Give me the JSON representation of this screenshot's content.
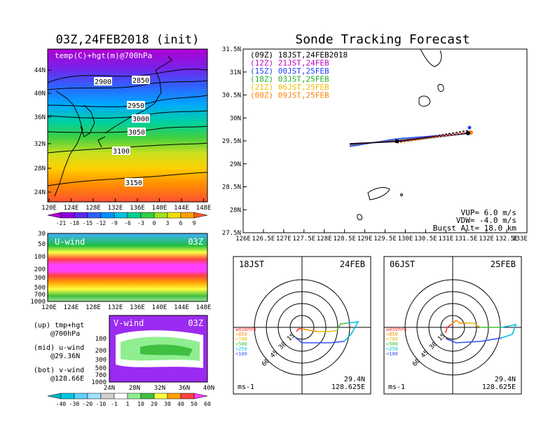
{
  "left_title": "03Z,24FEB2018 (init)",
  "main_title": "Sonde Tracking Forecast",
  "map_panel": {
    "label": "temp(C)+hgt(m)@700hPa",
    "lat_ticks": [
      "44N",
      "40N",
      "36N",
      "32N",
      "28N",
      "24N"
    ],
    "lon_ticks": [
      "120E",
      "124E",
      "128E",
      "132E",
      "136E",
      "140E",
      "144E",
      "148E"
    ],
    "contours": [
      "2850",
      "2900",
      "2950",
      "3000",
      "3050",
      "3100",
      "3150"
    ]
  },
  "temp_colorbar": {
    "labels": [
      "-21",
      "-18",
      "-15",
      "-12",
      "-9",
      "-6",
      "-3",
      "0",
      "3",
      "6",
      "9"
    ],
    "colors": [
      "#b000d0",
      "#8a00e0",
      "#5a28f0",
      "#2a60ff",
      "#0090ff",
      "#00c0e0",
      "#00d090",
      "#30d040",
      "#a0e020",
      "#f0e000",
      "#ffa000",
      "#ff5a20"
    ]
  },
  "uwind_panel": {
    "label": "U-wind",
    "time": "03Z",
    "p_ticks": [
      "30",
      "50",
      "100",
      "200",
      "300",
      "500",
      "700",
      "1000"
    ],
    "lon_ticks": [
      "120E",
      "124E",
      "128E",
      "132E",
      "136E",
      "140E",
      "144E",
      "148E"
    ]
  },
  "vwind_panel": {
    "label": "V-wind",
    "time": "03Z",
    "p_ticks": [
      "100",
      "200",
      "300",
      "500",
      "700",
      "1000"
    ],
    "lat_ticks": [
      "24N",
      "28N",
      "32N",
      "36N",
      "40N"
    ]
  },
  "legend_notes": {
    "up": "(up) tmp+hgt",
    "up2": "@700hPa",
    "mid": "(mid) u-wind",
    "mid2": "@29.36N",
    "bot": "(bot) v-wind",
    "bot2": "@128.66E"
  },
  "wind_colorbar": {
    "labels": [
      "-40",
      "-30",
      "-20",
      "-10",
      "-1",
      "1",
      "10",
      "20",
      "30",
      "40",
      "50",
      "60"
    ],
    "colors": [
      "#00b4c8",
      "#00c8e0",
      "#60d0ff",
      "#a0e0ff",
      "#d0d0d0",
      "#ffffff",
      "#90ee90",
      "#40c040",
      "#ffff40",
      "#ffa000",
      "#ff4040",
      "#ff40ff"
    ]
  },
  "track_panel": {
    "lat_ticks": [
      "31.5N",
      "31N",
      "30.5N",
      "30N",
      "29.5N",
      "29N",
      "28.5N",
      "28N",
      "27.5N"
    ],
    "lon_ticks": [
      "126E",
      "126.5E",
      "127E",
      "127.5E",
      "128E",
      "128.5E",
      "129E",
      "129.5E",
      "130E",
      "130.5E",
      "131E",
      "131.5E",
      "132E",
      "132.5E",
      "133E"
    ],
    "legend": [
      {
        "text": "(09Z)  18JST,24FEB2018",
        "color": "#000000"
      },
      {
        "text": "(12Z)  21JST,24FEB",
        "color": "#c000c0"
      },
      {
        "text": "(15Z)  00JST,25FEB",
        "color": "#2040ff"
      },
      {
        "text": "(18Z)  03JST,25FEB",
        "color": "#20b020"
      },
      {
        "text": "(21Z)  06JST,25FEB",
        "color": "#f0c000"
      },
      {
        "text": "(00Z)  09JST,25FEB",
        "color": "#ff8000"
      }
    ],
    "vup": "VUP=  6.0 m/s",
    "vdw": "VDW= -4.0 m/s",
    "burst": "Burst Alt= 18.0 km"
  },
  "hodo_left": {
    "time": "18JST",
    "date": "24FEB",
    "lat": "29.4N",
    "lon": "128.625E",
    "unit": "ms-1",
    "ring15": "15",
    "ring30": "30",
    "ring45": "45",
    "ring60": "60"
  },
  "hodo_right": {
    "time": "06JST",
    "date": "25FEB",
    "lat": "29.4N",
    "lon": "128.625E",
    "unit": "ms-1",
    "ring15": "15",
    "ring30": "30",
    "ring45": "45",
    "ring60": "60"
  },
  "hodo_levels": [
    {
      "text": "≥850hPa",
      "color": "#ff3030"
    },
    {
      "text": "<850",
      "color": "#ff9000"
    },
    {
      "text": "<700",
      "color": "#e0c000"
    },
    {
      "text": "<500",
      "color": "#40c040"
    },
    {
      "text": "<250",
      "color": "#00c0e0"
    },
    {
      "text": "<100",
      "color": "#3050ff"
    }
  ]
}
